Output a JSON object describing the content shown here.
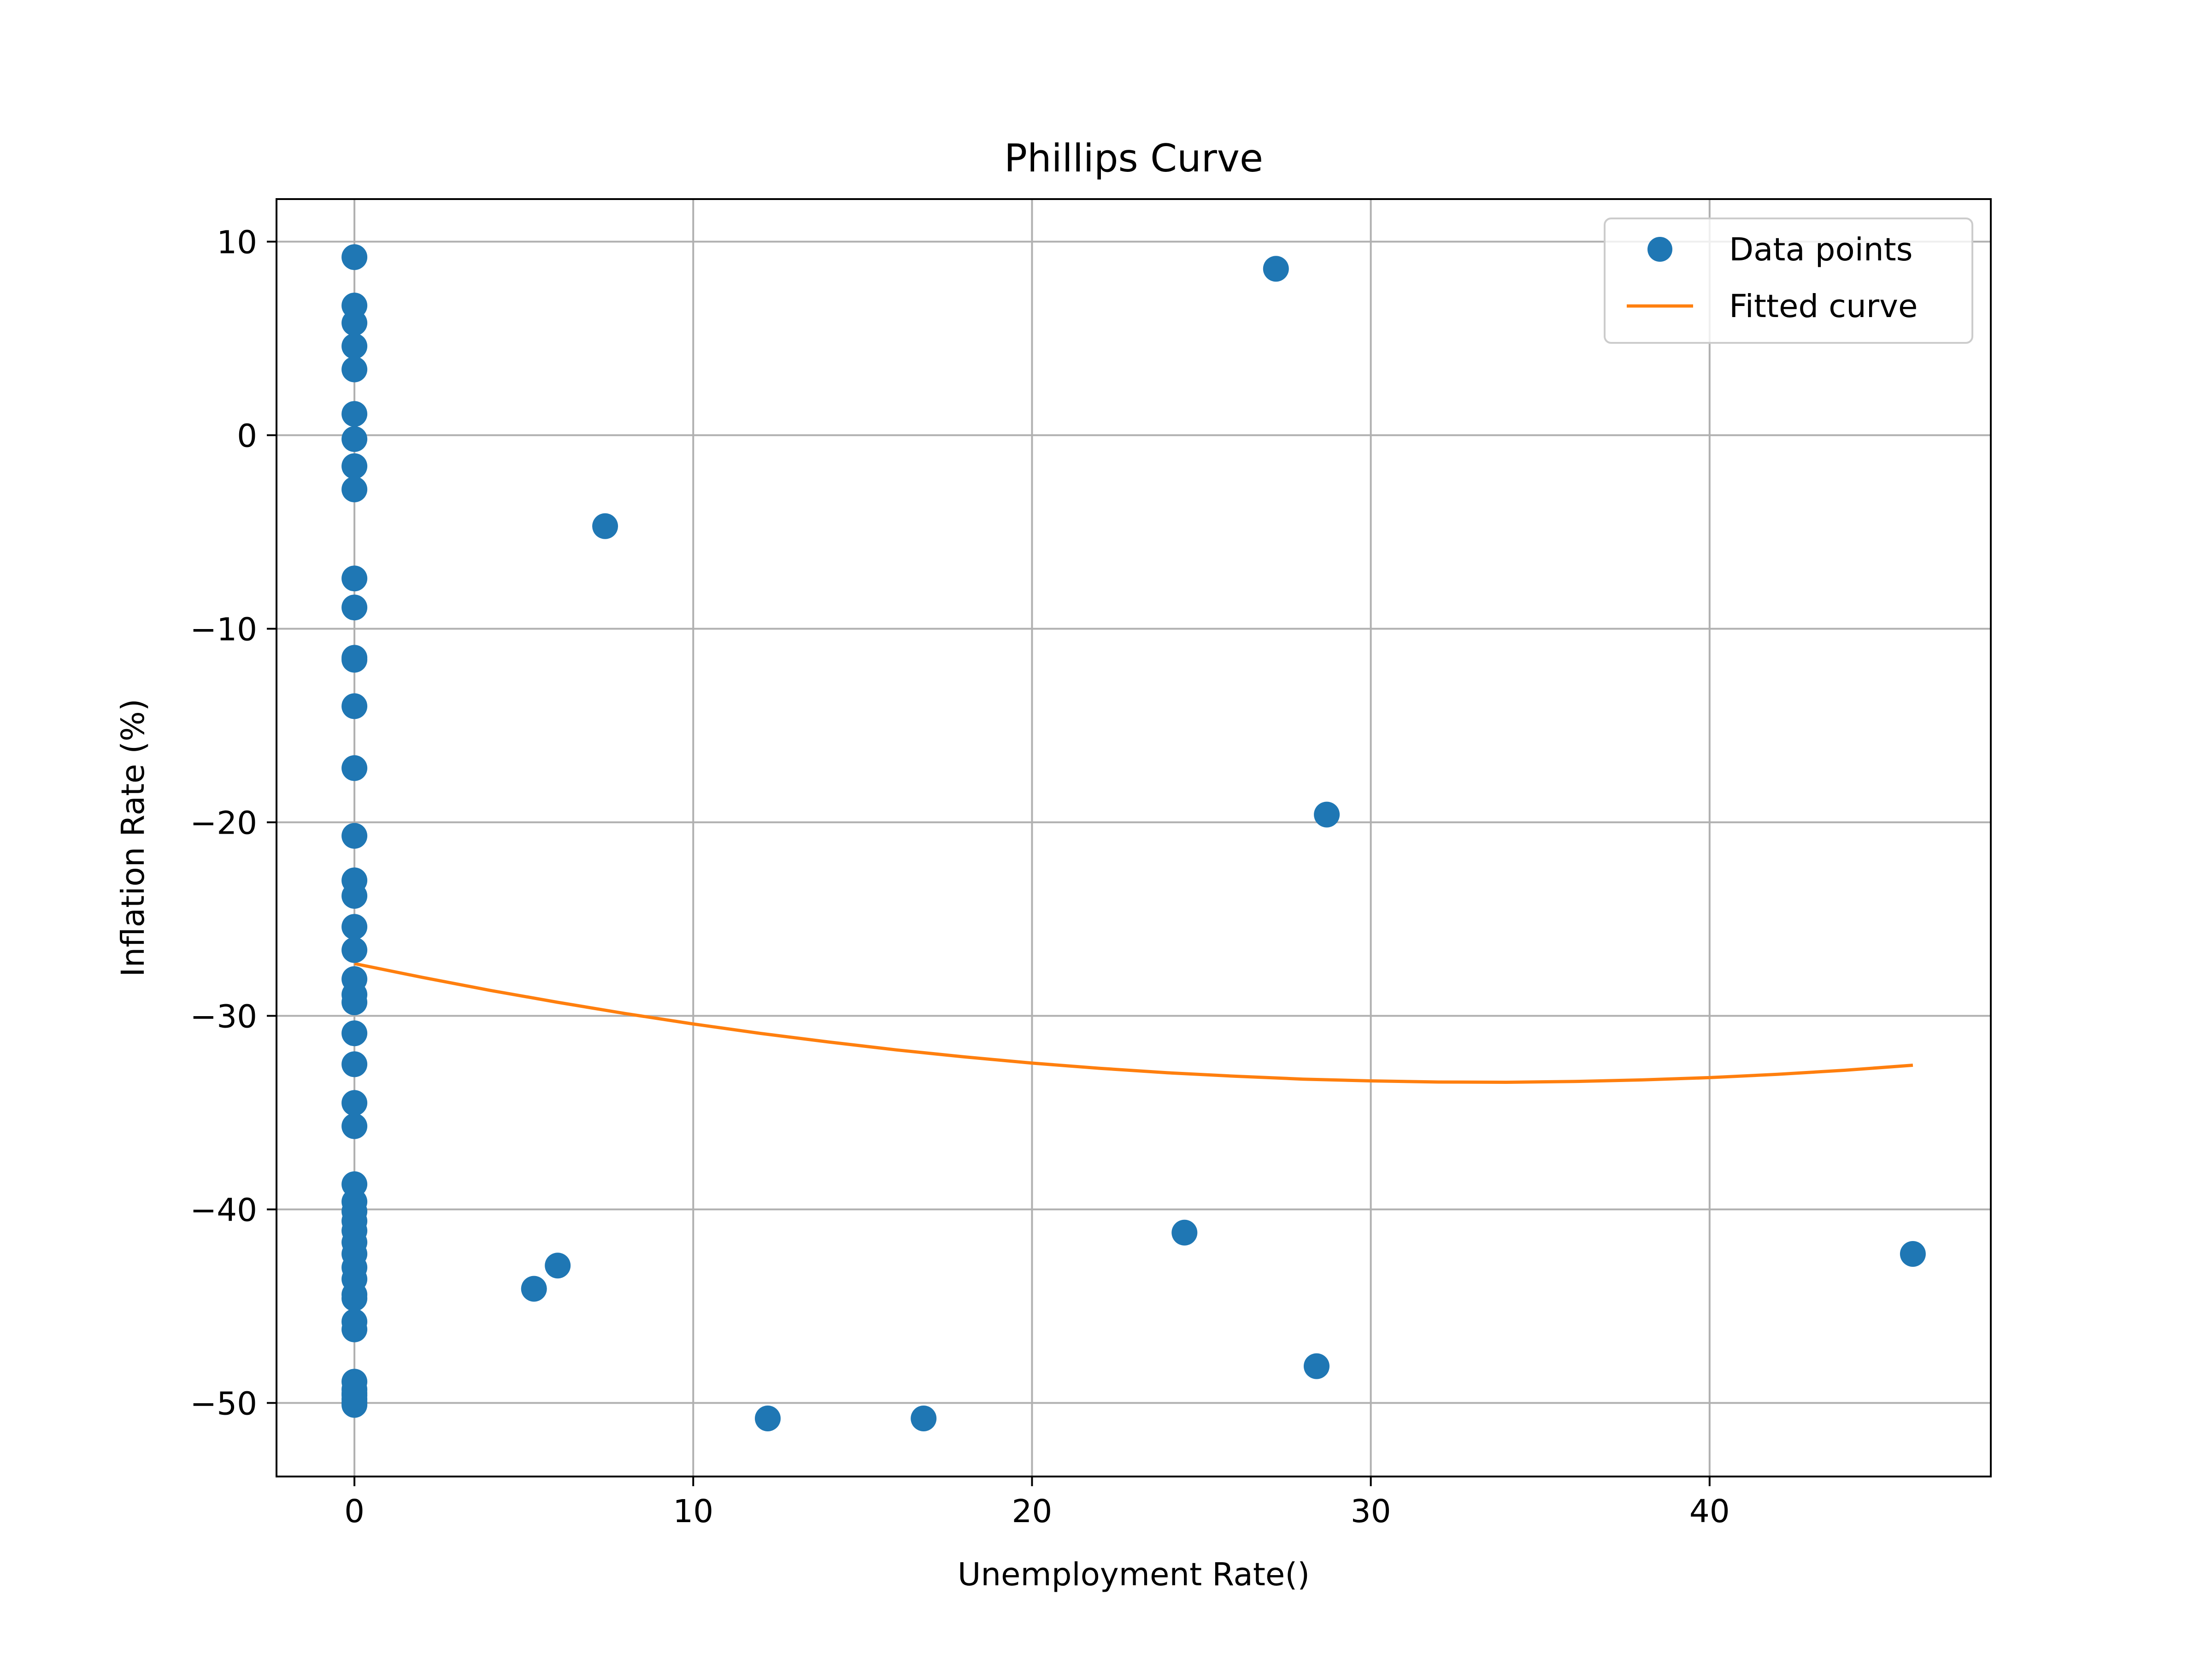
{
  "chart_data": {
    "type": "scatter",
    "title": "Phillips Curve",
    "xlabel": "Unemployment Rate()",
    "ylabel": "Inflation Rate (%)",
    "xlim": [
      -2.3,
      48.3
    ],
    "ylim": [
      -53.8,
      12.2
    ],
    "xticks": [
      0,
      10,
      20,
      30,
      40
    ],
    "yticks": [
      10,
      0,
      -10,
      -20,
      -30,
      -40,
      -50
    ],
    "ytick_labels": [
      "10",
      "0",
      "−10",
      "−20",
      "−30",
      "−40",
      "−50"
    ],
    "grid": true,
    "legend_position": "upper right",
    "colors": {
      "points": "#1f77b4",
      "curve": "#ff7f0e"
    },
    "series": [
      {
        "name": "Data points",
        "kind": "scatter",
        "x": [
          0,
          0,
          0,
          0,
          0,
          0,
          0,
          0,
          0,
          0,
          0,
          0,
          0,
          0,
          0,
          0,
          0,
          0,
          0,
          0,
          0,
          0,
          0,
          0,
          0,
          0,
          0,
          0,
          0,
          0,
          0,
          0,
          0,
          0,
          0,
          0,
          0,
          0,
          0,
          0,
          0,
          0,
          0,
          0,
          0,
          0,
          0,
          7.4,
          27.2,
          28.7,
          5.3,
          6.0,
          12.2,
          16.8,
          24.5,
          28.4,
          46.0
        ],
        "y": [
          9.2,
          6.7,
          5.8,
          4.6,
          3.4,
          1.1,
          -0.2,
          -1.6,
          -2.8,
          -7.4,
          -8.9,
          -11.5,
          -11.6,
          -14.0,
          -17.2,
          -20.7,
          -23.0,
          -23.8,
          -25.4,
          -26.6,
          -28.1,
          -28.9,
          -29.3,
          -30.9,
          -32.5,
          -34.5,
          -35.7,
          -38.7,
          -39.6,
          -40.1,
          -40.6,
          -41.1,
          -41.7,
          -42.3,
          -43.0,
          -43.6,
          -44.4,
          -44.6,
          -45.8,
          -46.2,
          -48.9,
          -49.3,
          -49.6,
          -49.8,
          -50.0,
          -50.1,
          -49.5,
          -4.7,
          8.6,
          -19.6,
          -44.1,
          -42.9,
          -50.8,
          -50.8,
          -41.2,
          -48.1,
          -42.3
        ]
      },
      {
        "name": "Fitted curve",
        "kind": "line",
        "x": [
          0,
          2,
          4,
          6,
          8,
          10,
          12,
          14,
          16,
          18,
          20,
          22,
          24,
          26,
          28,
          30,
          32,
          34,
          36,
          38,
          40,
          42,
          44,
          46
        ],
        "y": [
          -27.3,
          -28.01,
          -28.68,
          -29.3,
          -29.88,
          -30.42,
          -30.91,
          -31.35,
          -31.76,
          -32.12,
          -32.44,
          -32.71,
          -32.94,
          -33.12,
          -33.27,
          -33.36,
          -33.42,
          -33.43,
          -33.39,
          -33.31,
          -33.19,
          -33.02,
          -32.81,
          -32.55
        ]
      }
    ]
  }
}
